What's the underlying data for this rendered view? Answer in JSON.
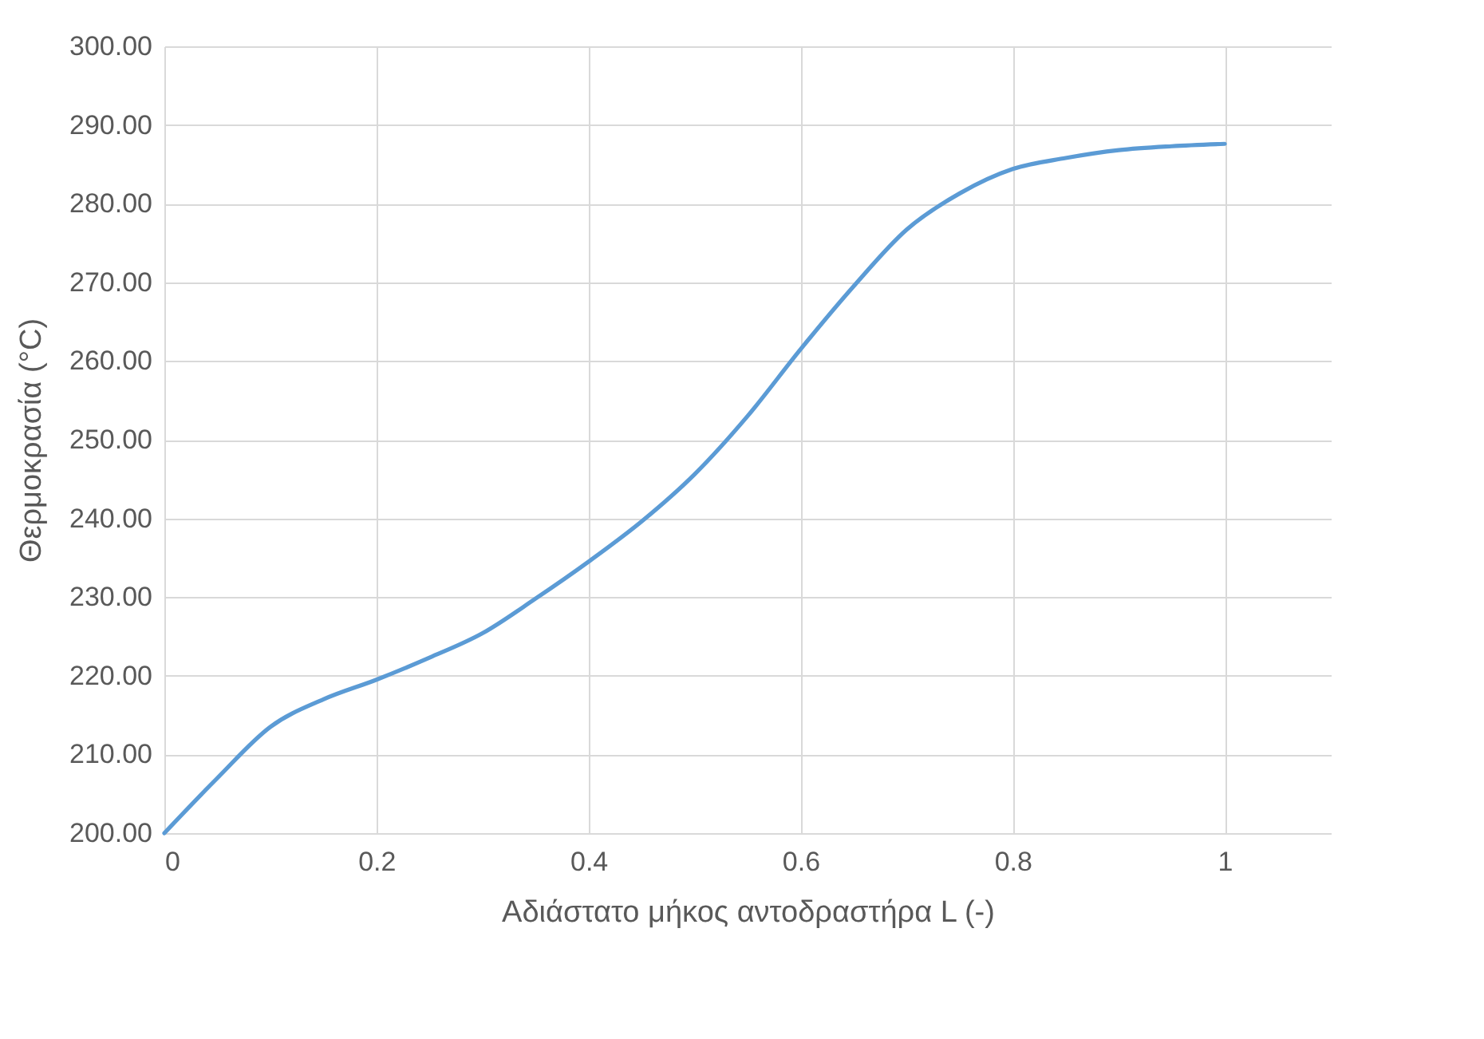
{
  "chart_data": {
    "type": "line",
    "xlabel": "Αδιάστατο μήκος αντοδραστήρα L (-)",
    "ylabel": "Θερμοκρασία (°C)",
    "x": [
      0,
      0.05,
      0.1,
      0.15,
      0.2,
      0.25,
      0.3,
      0.35,
      0.4,
      0.45,
      0.5,
      0.55,
      0.6,
      0.65,
      0.7,
      0.75,
      0.8,
      0.85,
      0.9,
      0.95,
      1
    ],
    "series": [
      {
        "color": "#5b9bd5",
        "values": [
          200,
          207,
          213.5,
          217,
          219.5,
          222.3,
          225.4,
          229.8,
          234.5,
          239.6,
          245.6,
          253,
          261.5,
          269.5,
          276.7,
          281.3,
          284.4,
          285.8,
          286.8,
          287.3,
          287.6
        ]
      }
    ],
    "xlim": [
      0,
      1.1
    ],
    "xticks": [
      0,
      0.2,
      0.4,
      0.6,
      0.8,
      1
    ],
    "ylim": [
      200,
      300
    ],
    "yticks": [
      {
        "value": 200,
        "label": "200.00"
      },
      {
        "value": 210,
        "label": "210.00"
      },
      {
        "value": 220,
        "label": "220.00"
      },
      {
        "value": 230,
        "label": "230.00"
      },
      {
        "value": 240,
        "label": "240.00"
      },
      {
        "value": 250,
        "label": "250.00"
      },
      {
        "value": 260,
        "label": "260.00"
      },
      {
        "value": 270,
        "label": "270.00"
      },
      {
        "value": 280,
        "label": "280.00"
      },
      {
        "value": 290,
        "label": "290.00"
      },
      {
        "value": 300,
        "label": "300.00"
      }
    ],
    "grid": true,
    "marker": "none",
    "line_style": "solid"
  }
}
